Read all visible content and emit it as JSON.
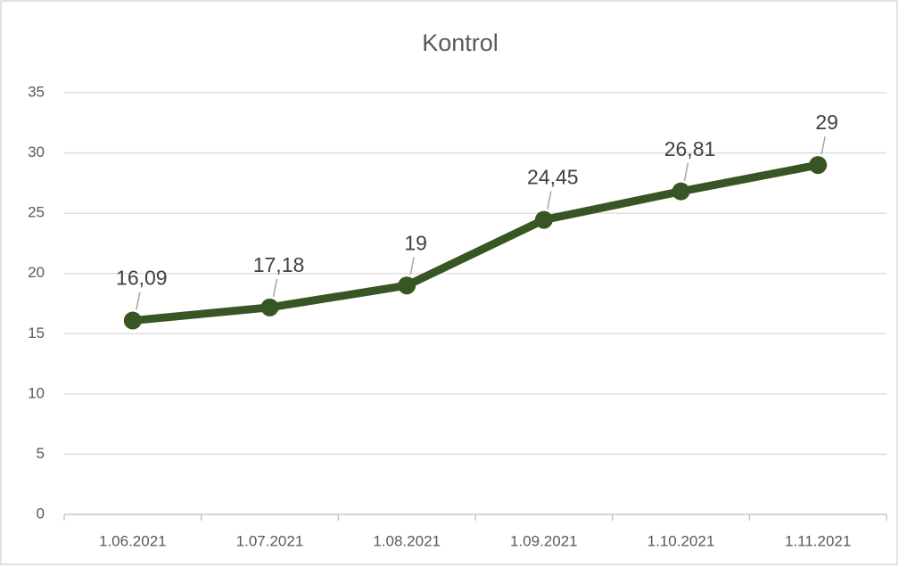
{
  "chart_data": {
    "type": "line",
    "title": "Kontrol",
    "categories": [
      "1.06.2021",
      "1.07.2021",
      "1.08.2021",
      "1.09.2021",
      "1.10.2021",
      "1.11.2021"
    ],
    "series": [
      {
        "name": "Kontrol",
        "color": "#375623",
        "values": [
          16.09,
          17.18,
          19,
          24.45,
          26.81,
          29
        ],
        "value_labels": [
          "16,09",
          "17,18",
          "19",
          "24,45",
          "26,81",
          "29"
        ]
      }
    ],
    "ylim": [
      0,
      35
    ],
    "yticks": [
      0,
      5,
      10,
      15,
      20,
      25,
      30,
      35
    ],
    "grid": true,
    "legend": false
  }
}
